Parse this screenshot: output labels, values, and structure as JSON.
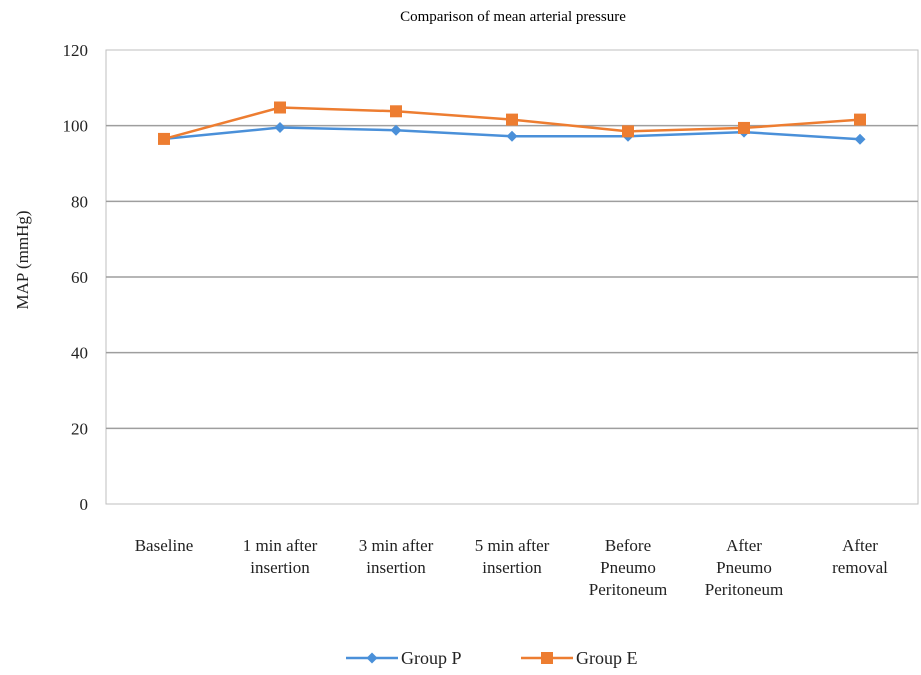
{
  "chart_data": {
    "type": "line",
    "title": "Comparison of mean arterial pressure",
    "xlabel": "",
    "ylabel": "MAP (mmHg)",
    "ylim": [
      0,
      120
    ],
    "yticks": [
      "0",
      "20",
      "40",
      "60",
      "80",
      "100",
      "120"
    ],
    "grid": true,
    "legend_position": "bottom",
    "categories": [
      [
        "Baseline"
      ],
      [
        "1 min after",
        "insertion"
      ],
      [
        "3 min after",
        "insertion"
      ],
      [
        "5 min after",
        "insertion"
      ],
      [
        "Before",
        "Pneumo",
        "Peritoneum"
      ],
      [
        "After",
        "Pneumo",
        "Peritoneum"
      ],
      [
        "After",
        "removal"
      ]
    ],
    "series": [
      {
        "name": "Group P",
        "color": "#4a90d9",
        "marker": "diamond",
        "values": [
          96.5,
          99.5,
          98.8,
          97.2,
          97.2,
          98.3,
          96.4
        ]
      },
      {
        "name": "Group E",
        "color": "#ed7d31",
        "marker": "square",
        "values": [
          96.5,
          104.8,
          103.8,
          101.6,
          98.5,
          99.4,
          101.6
        ]
      }
    ]
  }
}
